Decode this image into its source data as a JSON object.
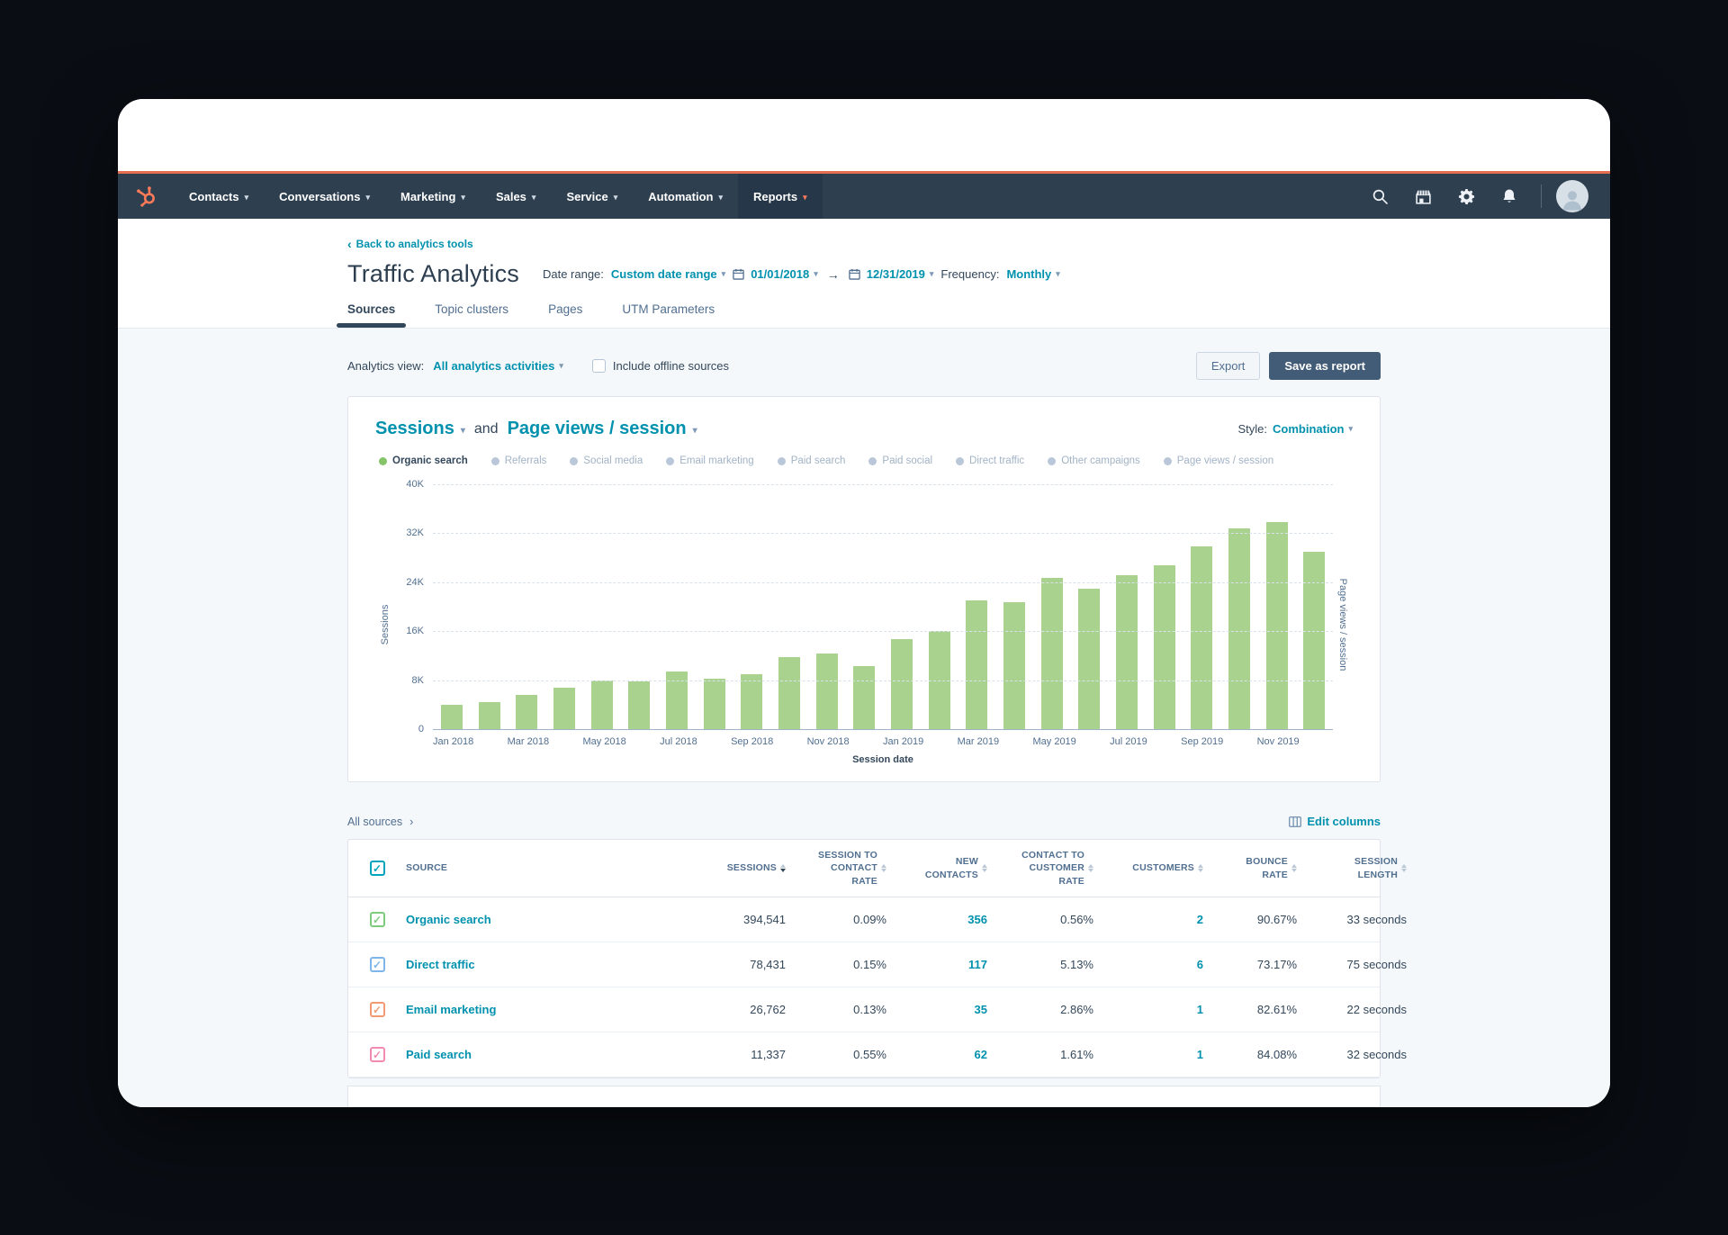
{
  "colors": {
    "accent_coral": "#ff7a59",
    "nav_bg": "#2e3f50",
    "teal_link": "#0091ae",
    "dark_text": "#33475b",
    "bar_green": "#a9d28f",
    "legend_active_dot": "#86c46a",
    "legend_inactive_dot": "#b9c7d8"
  },
  "nav": {
    "items": [
      {
        "label": "Contacts",
        "active": false
      },
      {
        "label": "Conversations",
        "active": false
      },
      {
        "label": "Marketing",
        "active": false
      },
      {
        "label": "Sales",
        "active": false
      },
      {
        "label": "Service",
        "active": false
      },
      {
        "label": "Automation",
        "active": false
      },
      {
        "label": "Reports",
        "active": true
      }
    ],
    "icons": [
      "search-icon",
      "marketplace-icon",
      "settings-icon",
      "notifications-icon"
    ]
  },
  "header": {
    "back_link": "Back to analytics tools",
    "title": "Traffic Analytics",
    "date_range_label": "Date range:",
    "date_range_value": "Custom date range",
    "start_date": "01/01/2018",
    "end_date": "12/31/2019",
    "frequency_label": "Frequency:",
    "frequency_value": "Monthly",
    "tabs": [
      {
        "label": "Sources",
        "active": true
      },
      {
        "label": "Topic clusters",
        "active": false
      },
      {
        "label": "Pages",
        "active": false
      },
      {
        "label": "UTM Parameters",
        "active": false
      }
    ]
  },
  "toolbar": {
    "analytics_view_label": "Analytics view:",
    "analytics_view_value": "All analytics activities",
    "offline_label": "Include offline sources",
    "export_label": "Export",
    "save_label": "Save as report"
  },
  "chart": {
    "metric1": "Sessions",
    "and_label": "and",
    "metric2": "Page views / session",
    "style_label": "Style:",
    "style_value": "Combination",
    "legend": [
      {
        "label": "Organic search",
        "active": true
      },
      {
        "label": "Referrals",
        "active": false
      },
      {
        "label": "Social media",
        "active": false
      },
      {
        "label": "Email marketing",
        "active": false
      },
      {
        "label": "Paid search",
        "active": false
      },
      {
        "label": "Paid social",
        "active": false
      },
      {
        "label": "Direct traffic",
        "active": false
      },
      {
        "label": "Other campaigns",
        "active": false
      },
      {
        "label": "Page views / session",
        "active": false
      }
    ]
  },
  "chart_data": {
    "type": "bar",
    "title": "Sessions and Page views / session",
    "xlabel": "Session date",
    "ylabel_left": "Sessions",
    "ylabel_right": "Page views / session",
    "ylim": [
      0,
      40000
    ],
    "yticks": [
      "40K",
      "32K",
      "24K",
      "16K",
      "8K",
      "0"
    ],
    "grid": true,
    "legend_position": "top",
    "categories": [
      "Jan 2018",
      "Feb 2018",
      "Mar 2018",
      "Apr 2018",
      "May 2018",
      "Jun 2018",
      "Jul 2018",
      "Aug 2018",
      "Sep 2018",
      "Oct 2018",
      "Nov 2018",
      "Dec 2018",
      "Jan 2019",
      "Feb 2019",
      "Mar 2019",
      "Apr 2019",
      "May 2019",
      "Jun 2019",
      "Jul 2019",
      "Aug 2019",
      "Sep 2019",
      "Oct 2019",
      "Nov 2019",
      "Dec 2019"
    ],
    "shown_tick_labels": [
      "Jan 2018",
      "Mar 2018",
      "May 2018",
      "Jul 2018",
      "Sep 2018",
      "Nov 2018",
      "Jan 2019",
      "Mar 2019",
      "May 2019",
      "Jul 2019",
      "Sep 2019",
      "Nov 2019"
    ],
    "series": [
      {
        "name": "Organic search",
        "color": "#a9d28f",
        "values": [
          4000,
          4400,
          5600,
          6800,
          8000,
          7800,
          9400,
          8200,
          8900,
          11800,
          12400,
          10300,
          14700,
          16000,
          21100,
          20700,
          24700,
          23000,
          25200,
          26800,
          29800,
          32800,
          33800,
          29000
        ]
      }
    ]
  },
  "table": {
    "all_sources_label": "All sources",
    "edit_columns_label": "Edit columns",
    "header_checkbox_color": "#00a4bd",
    "columns": [
      {
        "label": "SOURCE",
        "sorted": null
      },
      {
        "label": "SESSIONS",
        "sorted": "desc"
      },
      {
        "label": "SESSION TO CONTACT RATE",
        "sorted": null
      },
      {
        "label": "NEW CONTACTS",
        "sorted": null
      },
      {
        "label": "CONTACT TO CUSTOMER RATE",
        "sorted": null
      },
      {
        "label": "CUSTOMERS",
        "sorted": null
      },
      {
        "label": "BOUNCE RATE",
        "sorted": null
      },
      {
        "label": "SESSION LENGTH",
        "sorted": null
      }
    ],
    "link_value_columns": [
      2,
      4
    ],
    "rows": [
      {
        "source": "Organic search",
        "checkbox_color": "#7ecb7e",
        "values": [
          "394,541",
          "0.09%",
          "356",
          "0.56%",
          "2",
          "90.67%",
          "33 seconds"
        ]
      },
      {
        "source": "Direct traffic",
        "checkbox_color": "#7eb5ea",
        "values": [
          "78,431",
          "0.15%",
          "117",
          "5.13%",
          "6",
          "73.17%",
          "75 seconds"
        ]
      },
      {
        "source": "Email marketing",
        "checkbox_color": "#f29a73",
        "values": [
          "26,762",
          "0.13%",
          "35",
          "2.86%",
          "1",
          "82.61%",
          "22 seconds"
        ]
      },
      {
        "source": "Paid search",
        "checkbox_color": "#f08cb1",
        "values": [
          "11,337",
          "0.55%",
          "62",
          "1.61%",
          "1",
          "84.08%",
          "32 seconds"
        ]
      }
    ]
  }
}
